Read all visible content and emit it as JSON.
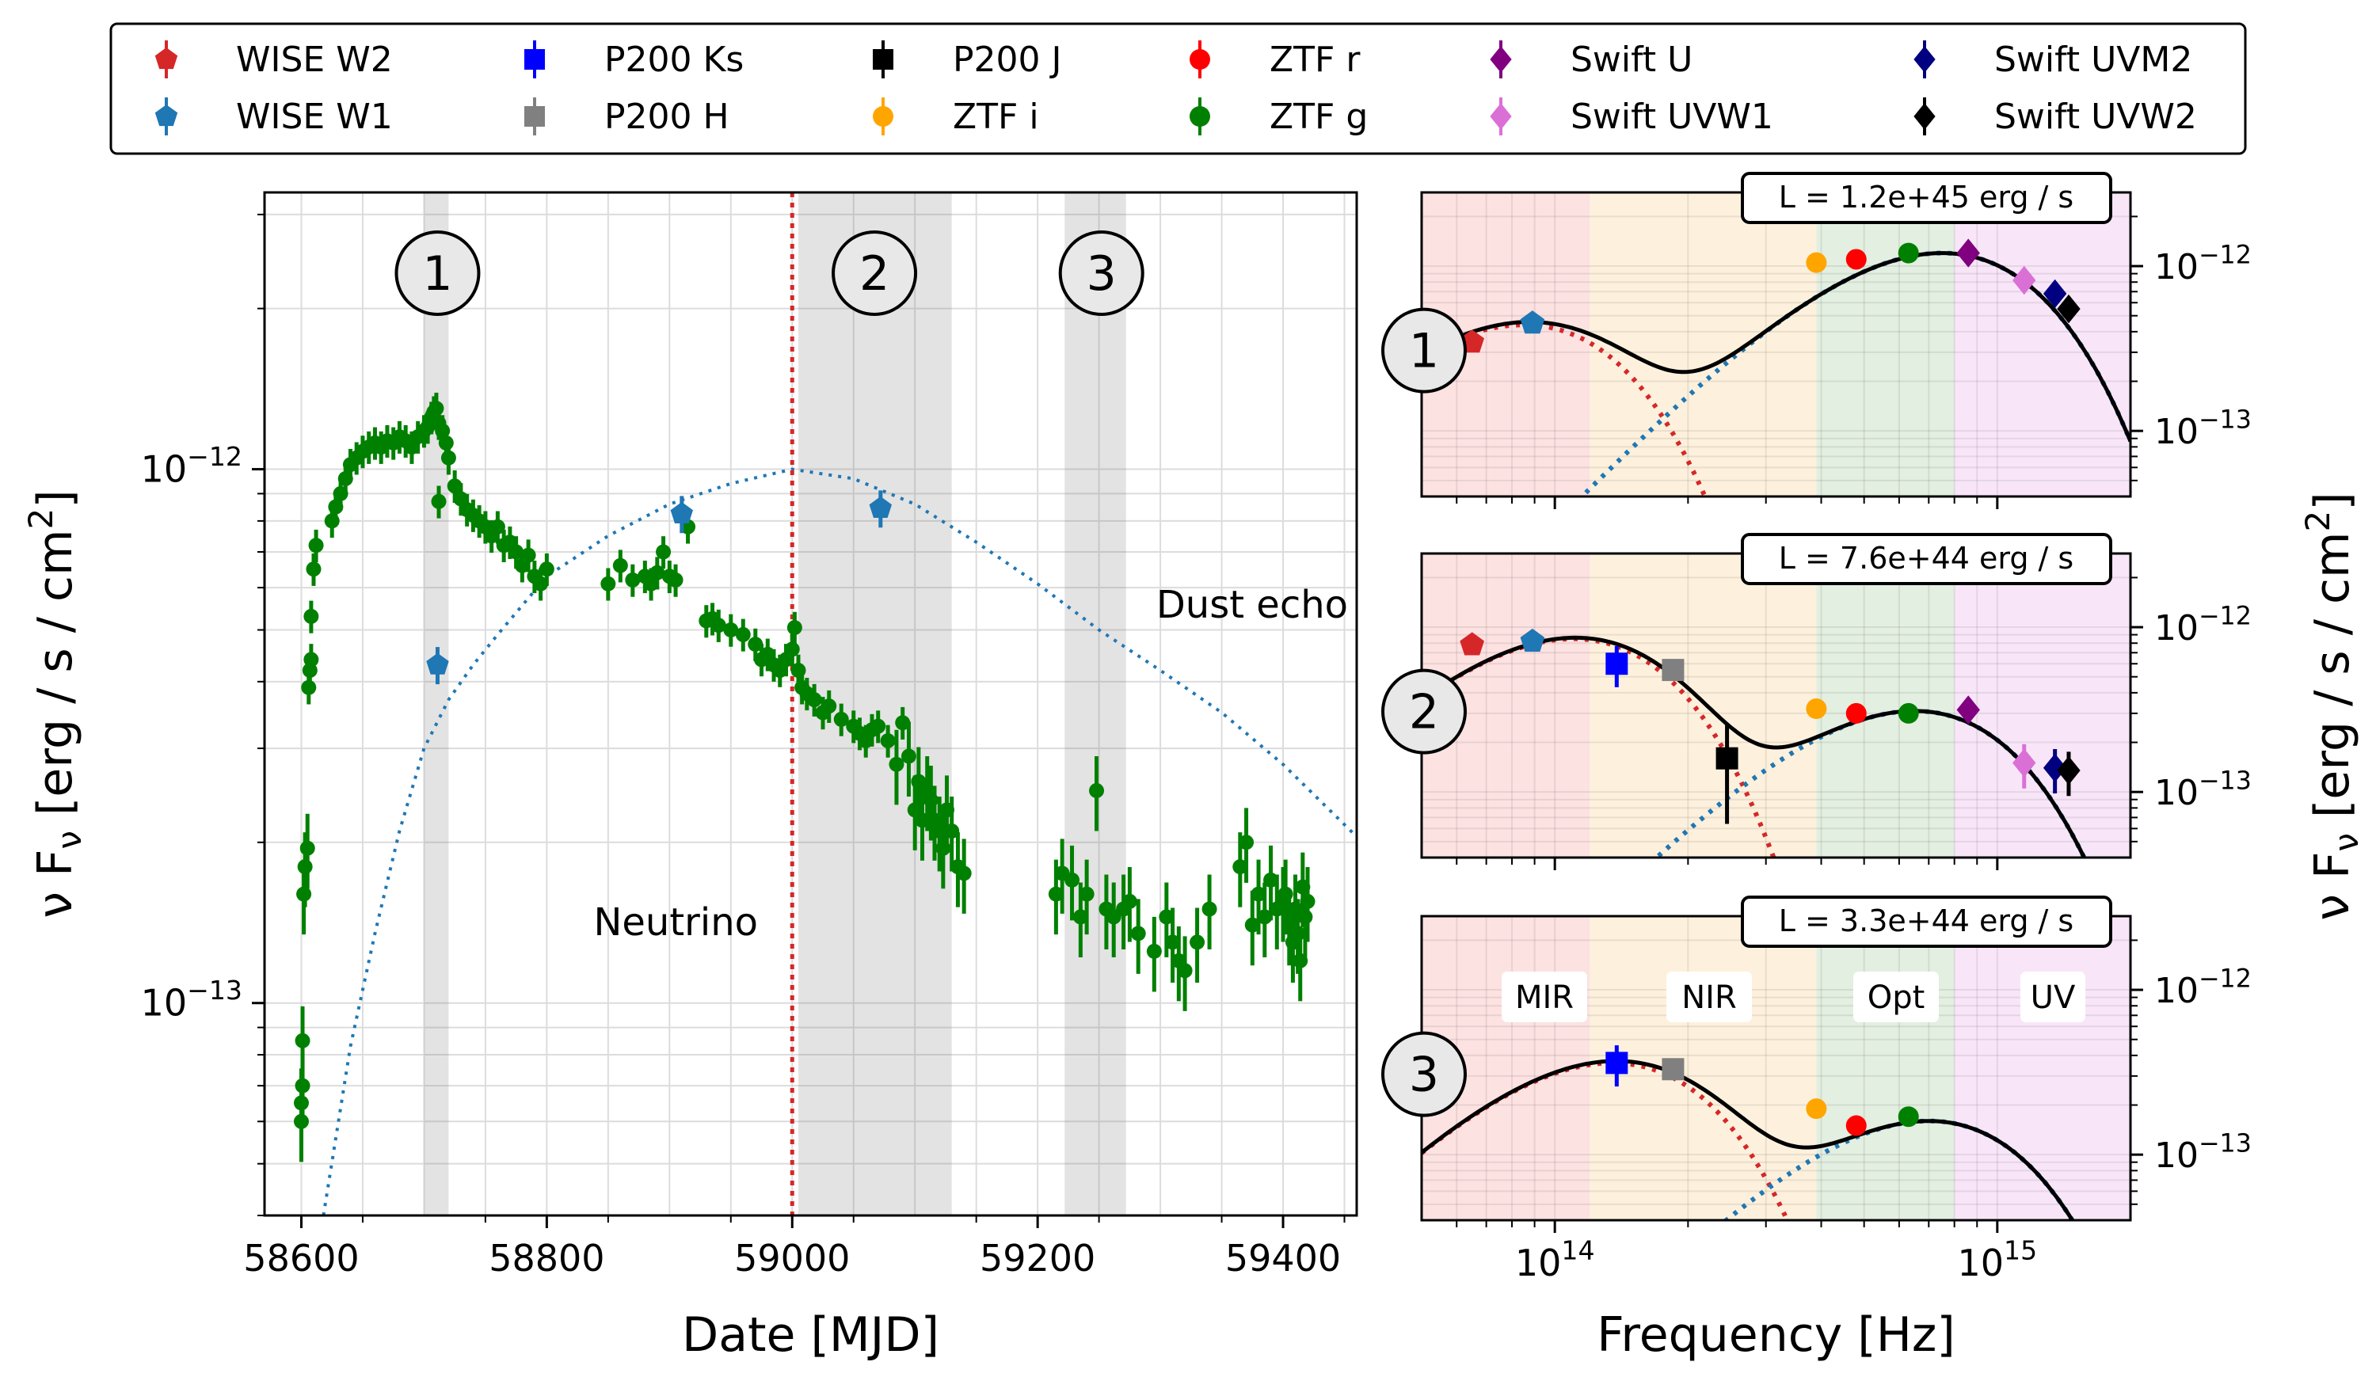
{
  "legend": {
    "entries": [
      {
        "label": "WISE W2",
        "color": "#d62728",
        "marker": "pentagon"
      },
      {
        "label": "WISE W1",
        "color": "#1f77b4",
        "marker": "pentagon"
      },
      {
        "label": "P200 Ks",
        "color": "#0000ff",
        "marker": "square"
      },
      {
        "label": "P200 H",
        "color": "#808080",
        "marker": "square"
      },
      {
        "label": "P200 J",
        "color": "#000000",
        "marker": "square"
      },
      {
        "label": "ZTF i",
        "color": "#ffa500",
        "marker": "circle"
      },
      {
        "label": "ZTF r",
        "color": "#ff0000",
        "marker": "circle"
      },
      {
        "label": "ZTF g",
        "color": "#008000",
        "marker": "circle"
      },
      {
        "label": "Swift U",
        "color": "#800080",
        "marker": "diamond"
      },
      {
        "label": "Swift UVW1",
        "color": "#da70d6",
        "marker": "diamond"
      },
      {
        "label": "Swift UVM2",
        "color": "#000080",
        "marker": "diamond"
      },
      {
        "label": "Swift UVW2",
        "color": "#000000",
        "marker": "diamond"
      }
    ]
  },
  "chart_data": [
    {
      "type": "scatter",
      "xlabel": "Date [MJD]",
      "ylabel": "ν F",
      "ylabel_sub": "ν",
      "ylabel_unit": " [erg / s / cm",
      "ylabel_tail": "]",
      "xlim": [
        58570,
        59460
      ],
      "ylim": [
        4e-14,
        3.3e-12
      ],
      "yscale": "log",
      "xticks": [
        58600,
        58800,
        59000,
        59200,
        59400
      ],
      "yticks": [
        {
          "value": 1e-13,
          "label": "10",
          "exp": "−13"
        },
        {
          "value": 1e-12,
          "label": "10",
          "exp": "−12"
        }
      ],
      "grid": true,
      "epochs": [
        {
          "label": "1",
          "start": 58700,
          "end": 58720,
          "center": 58711
        },
        {
          "label": "2",
          "start": 59005,
          "end": 59130,
          "center": 59067
        },
        {
          "label": "3",
          "start": 59222,
          "end": 59272,
          "center": 59252
        }
      ],
      "neutrino": {
        "mjd": 59000,
        "label": "Neutrino",
        "color": "#d62728"
      },
      "dust_echo": {
        "label": "Dust echo",
        "color": "#1f77b4",
        "x": [
          58618,
          58640,
          58660,
          58680,
          58700,
          58720,
          58740,
          58760,
          58800,
          58850,
          58900,
          58950,
          59000,
          59050,
          59100,
          59150,
          59200,
          59250,
          59300,
          59350,
          59400,
          59460
        ],
        "y": [
          4e-14,
          8.3e-14,
          1.35e-13,
          2.1e-13,
          3e-13,
          3.7e-13,
          4.3e-13,
          4.9e-13,
          6.3e-13,
          7.5e-13,
          8.6e-13,
          9.4e-13,
          1e-12,
          9.6e-13,
          8.6e-13,
          7.3e-13,
          6.1e-13,
          5e-13,
          4.2e-13,
          3.5e-13,
          2.8e-13,
          2.05e-13
        ]
      },
      "series": [
        {
          "name": "ZTF g",
          "color": "#008000",
          "marker": "circle",
          "x": [
            58600,
            58600,
            58601,
            58601,
            58602,
            58603,
            58605,
            58606,
            58607,
            58608,
            58608,
            58610,
            58612,
            58625,
            58628,
            58632,
            58636,
            58640,
            58645,
            58650,
            58655,
            58660,
            58665,
            58670,
            58675,
            58680,
            58685,
            58690,
            58695,
            58700,
            58703,
            58706,
            58708,
            58710,
            58712,
            58715,
            58718,
            58720,
            58712,
            58725,
            58730,
            58735,
            58740,
            58745,
            58750,
            58755,
            58760,
            58765,
            58770,
            58775,
            58780,
            58785,
            58790,
            58795,
            58800,
            58850,
            58860,
            58870,
            58880,
            58885,
            58890,
            58895,
            58900,
            58905,
            58915,
            58930,
            58935,
            58940,
            58950,
            58960,
            58970,
            58975,
            58980,
            58985,
            58990,
            58995,
            59000,
            59002,
            59005,
            59008,
            59012,
            59018,
            59025,
            59030,
            59040,
            59050,
            59055,
            59060,
            59065,
            59070,
            59078,
            59085,
            59090,
            59095,
            59100,
            59103,
            59106,
            59110,
            59113,
            59116,
            59120,
            59123,
            59126,
            59130,
            59135,
            59140,
            59215,
            59220,
            59228,
            59235,
            59240,
            59248,
            59256,
            59262,
            59270,
            59275,
            59282,
            59295,
            59305,
            59310,
            59315,
            59320,
            59330,
            59340,
            59365,
            59370,
            59375,
            59380,
            59385,
            59390,
            59395,
            59400,
            59402,
            59405,
            59408,
            59410,
            59412,
            59414,
            59416,
            59418,
            59420
          ],
          "y": [
            6e-14,
            6.5e-14,
            7e-14,
            8.5e-14,
            1.6e-13,
            1.8e-13,
            1.95e-13,
            3.9e-13,
            4.2e-13,
            4.4e-13,
            5.3e-13,
            6.5e-13,
            7.2e-13,
            8e-13,
            8.5e-13,
            9e-13,
            9.6e-13,
            1.02e-12,
            1.05e-12,
            1.08e-12,
            1.1e-12,
            1.12e-12,
            1.1e-12,
            1.13e-12,
            1.12e-12,
            1.15e-12,
            1.13e-12,
            1.1e-12,
            1.15e-12,
            1.18e-12,
            1.2e-12,
            1.25e-12,
            1.28e-12,
            1.3e-12,
            1.22e-12,
            1.18e-12,
            1.12e-12,
            1.05e-12,
            8.7e-13,
            9.3e-13,
            8.8e-13,
            8.4e-13,
            8.2e-13,
            8e-13,
            7.8e-13,
            7.5e-13,
            7.8e-13,
            7.2e-13,
            7.3e-13,
            7e-13,
            6.6e-13,
            6.9e-13,
            6.3e-13,
            6.1e-13,
            6.5e-13,
            6.1e-13,
            6.6e-13,
            6.2e-13,
            6.3e-13,
            6.1e-13,
            6.4e-13,
            7e-13,
            6.3e-13,
            6.2e-13,
            7.8e-13,
            5.2e-13,
            5.25e-13,
            5.1e-13,
            5e-13,
            4.9e-13,
            4.7e-13,
            4.4e-13,
            4.5e-13,
            4.3e-13,
            4.2e-13,
            4.4e-13,
            4.6e-13,
            5.05e-13,
            4.2e-13,
            3.9e-13,
            3.8e-13,
            3.7e-13,
            3.5e-13,
            3.6e-13,
            3.4e-13,
            3.3e-13,
            3.2e-13,
            3.1e-13,
            3.25e-13,
            3.3e-13,
            3.1e-13,
            2.8e-13,
            3.35e-13,
            2.9e-13,
            2.3e-13,
            2.6e-13,
            2.2e-13,
            2.5e-13,
            2.4e-13,
            2.2e-13,
            2.1e-13,
            1.95e-13,
            2.3e-13,
            2.1e-13,
            1.8e-13,
            1.75e-13,
            1.6e-13,
            1.75e-13,
            1.7e-13,
            1.45e-13,
            1.6e-13,
            2.5e-13,
            1.5e-13,
            1.45e-13,
            1.5e-13,
            1.55e-13,
            1.35e-13,
            1.25e-13,
            1.45e-13,
            1.3e-13,
            1.2e-13,
            1.15e-13,
            1.3e-13,
            1.5e-13,
            1.8e-13,
            2e-13,
            1.4e-13,
            1.6e-13,
            1.45e-13,
            1.7e-13,
            1.5e-13,
            1.55e-13,
            1.6e-13,
            1.4e-13,
            1.3e-13,
            1.5e-13,
            1.35e-13,
            1.2e-13,
            1.65e-13,
            1.45e-13,
            1.55e-13
          ]
        },
        {
          "name": "WISE W1",
          "color": "#1f77b4",
          "marker": "pentagon",
          "x": [
            58711,
            58910,
            59072
          ],
          "y": [
            4.3e-13,
            8.25e-13,
            8.45e-13
          ]
        }
      ],
      "annotations": [
        "Neutrino",
        "Dust echo"
      ]
    },
    {
      "type": "scatter",
      "panel": "1",
      "xlabel": "",
      "xscale": "log",
      "yscale": "log",
      "xlim": [
        50000000000000.0,
        2000000000000000.0
      ],
      "ylim": [
        4e-14,
        2.8e-12
      ],
      "luminosity": "L = 1.2e+45 erg / s",
      "yticks": [
        {
          "value": 1e-13,
          "label": "10",
          "exp": "−13"
        },
        {
          "value": 1e-12,
          "label": "10",
          "exp": "−12"
        }
      ],
      "bands": [
        {
          "name": "MIR",
          "from": 50000000000000.0,
          "to": 120000000000000.0,
          "color": "#fde2e2"
        },
        {
          "name": "NIR",
          "from": 120000000000000.0,
          "to": 390000000000000.0,
          "color": "#fdf1dd"
        },
        {
          "name": "Opt",
          "from": 390000000000000.0,
          "to": 800000000000000.0,
          "color": "#e3efe1"
        },
        {
          "name": "UV",
          "from": 800000000000000.0,
          "to": 2000000000000000.0,
          "color": "#f8e6f8"
        }
      ],
      "points": [
        {
          "band": "WISE W2",
          "nu": 65000000000000.0,
          "flux": 3.45e-13,
          "color": "#d62728",
          "marker": "pentagon"
        },
        {
          "band": "WISE W1",
          "nu": 89000000000000.0,
          "flux": 4.5e-13,
          "color": "#1f77b4",
          "marker": "pentagon"
        },
        {
          "band": "ZTF i",
          "nu": 390000000000000.0,
          "flux": 1.05e-12,
          "color": "#ffa500",
          "marker": "circle"
        },
        {
          "band": "ZTF r",
          "nu": 480000000000000.0,
          "flux": 1.1e-12,
          "color": "#ff0000",
          "marker": "circle"
        },
        {
          "band": "ZTF g",
          "nu": 630000000000000.0,
          "flux": 1.2e-12,
          "color": "#008000",
          "marker": "circle"
        },
        {
          "band": "Swift U",
          "nu": 860000000000000.0,
          "flux": 1.2e-12,
          "color": "#800080",
          "marker": "diamond"
        },
        {
          "band": "Swift UVW1",
          "nu": 1150000000000000.0,
          "flux": 8.2e-13,
          "color": "#da70d6",
          "marker": "diamond"
        },
        {
          "band": "Swift UVM2",
          "nu": 1350000000000000.0,
          "flux": 6.8e-13,
          "color": "#000080",
          "marker": "diamond"
        },
        {
          "band": "Swift UVW2",
          "nu": 1450000000000000.0,
          "flux": 5.5e-13,
          "color": "#000000",
          "marker": "diamond"
        }
      ],
      "dust_bb": {
        "peak_nu": 85000000000000.0,
        "peak_flux": 4.4e-13
      },
      "hot_bb": {
        "peak_nu": 750000000000000.0,
        "peak_flux": 1.2e-12
      }
    },
    {
      "type": "scatter",
      "panel": "2",
      "xlabel": "",
      "xscale": "log",
      "yscale": "log",
      "xlim": [
        50000000000000.0,
        2000000000000000.0
      ],
      "ylim": [
        4e-14,
        2.8e-12
      ],
      "luminosity": "L = 7.6e+44 erg / s",
      "yticks": [
        {
          "value": 1e-13,
          "label": "10",
          "exp": "−13"
        },
        {
          "value": 1e-12,
          "label": "10",
          "exp": "−12"
        }
      ],
      "bands": [
        {
          "name": "MIR",
          "from": 50000000000000.0,
          "to": 120000000000000.0,
          "color": "#fde2e2"
        },
        {
          "name": "NIR",
          "from": 120000000000000.0,
          "to": 390000000000000.0,
          "color": "#fdf1dd"
        },
        {
          "name": "Opt",
          "from": 390000000000000.0,
          "to": 800000000000000.0,
          "color": "#e3efe1"
        },
        {
          "name": "UV",
          "from": 800000000000000.0,
          "to": 2000000000000000.0,
          "color": "#f8e6f8"
        }
      ],
      "points": [
        {
          "band": "WISE W2",
          "nu": 65000000000000.0,
          "flux": 7.8e-13,
          "color": "#d62728",
          "marker": "pentagon"
        },
        {
          "band": "WISE W1",
          "nu": 89000000000000.0,
          "flux": 8.2e-13,
          "color": "#1f77b4",
          "marker": "pentagon"
        },
        {
          "band": "P200 Ks",
          "nu": 138000000000000.0,
          "flux": 6e-13,
          "color": "#0000ff",
          "marker": "square"
        },
        {
          "band": "P200 H",
          "nu": 185000000000000.0,
          "flux": 5.5e-13,
          "color": "#808080",
          "marker": "square"
        },
        {
          "band": "P200 J",
          "nu": 245000000000000.0,
          "flux": 1.6e-13,
          "color": "#000000",
          "marker": "square"
        },
        {
          "band": "ZTF i",
          "nu": 390000000000000.0,
          "flux": 3.2e-13,
          "color": "#ffa500",
          "marker": "circle"
        },
        {
          "band": "ZTF r",
          "nu": 480000000000000.0,
          "flux": 3e-13,
          "color": "#ff0000",
          "marker": "circle"
        },
        {
          "band": "ZTF g",
          "nu": 630000000000000.0,
          "flux": 3e-13,
          "color": "#008000",
          "marker": "circle"
        },
        {
          "band": "Swift U",
          "nu": 860000000000000.0,
          "flux": 3.15e-13,
          "color": "#800080",
          "marker": "diamond"
        },
        {
          "band": "Swift UVW1",
          "nu": 1150000000000000.0,
          "flux": 1.5e-13,
          "color": "#da70d6",
          "marker": "diamond"
        },
        {
          "band": "Swift UVM2",
          "nu": 1350000000000000.0,
          "flux": 1.4e-13,
          "color": "#000080",
          "marker": "diamond"
        },
        {
          "band": "Swift UVW2",
          "nu": 1450000000000000.0,
          "flux": 1.35e-13,
          "color": "#000000",
          "marker": "diamond"
        }
      ],
      "dust_bb": {
        "peak_nu": 110000000000000.0,
        "peak_flux": 8.5e-13
      },
      "hot_bb": {
        "peak_nu": 650000000000000.0,
        "peak_flux": 3.1e-13
      }
    },
    {
      "type": "scatter",
      "panel": "3",
      "xlabel": "Frequency [Hz]",
      "xscale": "log",
      "yscale": "log",
      "xlim": [
        50000000000000.0,
        2000000000000000.0
      ],
      "ylim": [
        4e-14,
        2.8e-12
      ],
      "luminosity": "L = 3.3e+44 erg / s",
      "xticks": [
        {
          "value": 100000000000000.0,
          "label": "10",
          "exp": "14"
        },
        {
          "value": 1000000000000000.0,
          "label": "10",
          "exp": "15"
        }
      ],
      "yticks": [
        {
          "value": 1e-13,
          "label": "10",
          "exp": "−13"
        },
        {
          "value": 1e-12,
          "label": "10",
          "exp": "−12"
        }
      ],
      "bands": [
        {
          "name": "MIR",
          "from": 50000000000000.0,
          "to": 120000000000000.0,
          "color": "#fde2e2",
          "label_color": "#e00000"
        },
        {
          "name": "NIR",
          "from": 120000000000000.0,
          "to": 390000000000000.0,
          "color": "#fdf1dd",
          "label_color": "#ffa500"
        },
        {
          "name": "Opt",
          "from": 390000000000000.0,
          "to": 800000000000000.0,
          "color": "#e3efe1",
          "label_color": "#008000"
        },
        {
          "name": "UV",
          "from": 800000000000000.0,
          "to": 2000000000000000.0,
          "color": "#f8e6f8",
          "label_color": "#da70d6"
        }
      ],
      "points": [
        {
          "band": "P200 Ks",
          "nu": 138000000000000.0,
          "flux": 3.6e-13,
          "color": "#0000ff",
          "marker": "square"
        },
        {
          "band": "P200 H",
          "nu": 185000000000000.0,
          "flux": 3.3e-13,
          "color": "#808080",
          "marker": "square"
        },
        {
          "band": "ZTF i",
          "nu": 390000000000000.0,
          "flux": 1.9e-13,
          "color": "#ffa500",
          "marker": "circle"
        },
        {
          "band": "ZTF r",
          "nu": 480000000000000.0,
          "flux": 1.5e-13,
          "color": "#ff0000",
          "marker": "circle"
        },
        {
          "band": "ZTF g",
          "nu": 630000000000000.0,
          "flux": 1.7e-13,
          "color": "#008000",
          "marker": "circle"
        }
      ],
      "dust_bb": {
        "peak_nu": 135000000000000.0,
        "peak_flux": 3.6e-13
      },
      "hot_bb": {
        "peak_nu": 700000000000000.0,
        "peak_flux": 1.6e-13
      }
    }
  ],
  "sed_ylabel": {
    "main": "ν F",
    "sub": "ν",
    "unit": " [erg / s / cm",
    "tail": "]"
  }
}
